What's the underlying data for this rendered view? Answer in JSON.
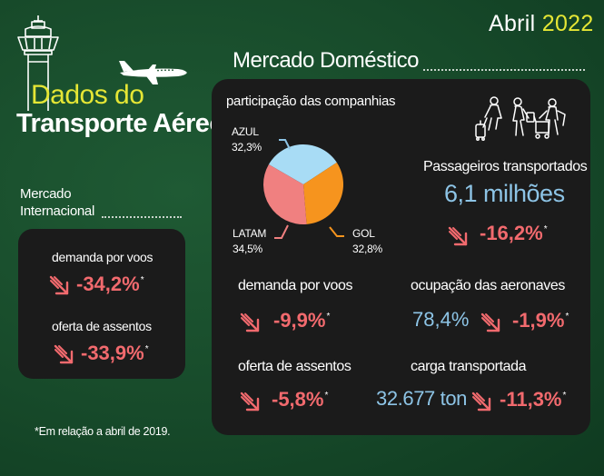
{
  "header": {
    "month": "Abril",
    "year": "2022",
    "title_line1": "Dados do",
    "title_line2": "Transporte Aéreo"
  },
  "international": {
    "title_line1": "Mercado",
    "title_line2": "Internacional",
    "demand_label": "demanda por voos",
    "demand_value": "-34,2%",
    "seats_label": "oferta de assentos",
    "seats_value": "-33,9%",
    "marker": "*"
  },
  "domestic": {
    "title": "Mercado Doméstico",
    "share_title": "participação das companhias",
    "airlines": [
      {
        "name": "AZUL",
        "share": "32,3%",
        "value": 32.3,
        "color": "#a8dcf5"
      },
      {
        "name": "GOL",
        "share": "32,8%",
        "value": 32.8,
        "color": "#f6941e"
      },
      {
        "name": "LATAM",
        "share": "34,5%",
        "value": 34.5,
        "color": "#f08080"
      }
    ],
    "passengers_label": "Passageiros transportados",
    "passengers_value": "6,1 milhões",
    "passengers_change": "-16,2%",
    "demand_label": "demanda por voos",
    "demand_change": "-9,9%",
    "occupancy_label": "ocupação das aeronaves",
    "occupancy_value": "78,4%",
    "occupancy_change": "-1,9%",
    "seats_label": "oferta de assentos",
    "seats_change": "-5,8%",
    "cargo_label": "carga transportada",
    "cargo_value": "32.677 ton",
    "cargo_change": "-11,3%",
    "marker": "*"
  },
  "footnote": "*Em relação a abril de 2019.",
  "icons": {
    "tower": "control-tower-icon",
    "plane": "airplane-icon",
    "travelers": "travelers-icon",
    "trend": "down-trend-arrow-icon"
  },
  "colors": {
    "accent_yellow": "#e5e635",
    "negative_red": "#f26a6e",
    "value_blue": "#8dc4e6"
  }
}
